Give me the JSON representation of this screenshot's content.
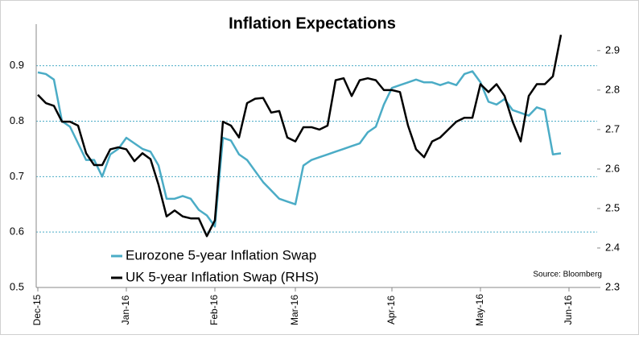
{
  "chart_data": {
    "type": "line",
    "title": "Inflation Expectations",
    "source": "Source: Bloomberg",
    "categories": [
      "Dec-15",
      null,
      null,
      null,
      null,
      null,
      null,
      null,
      null,
      null,
      null,
      "Jan-16",
      null,
      null,
      null,
      null,
      null,
      null,
      null,
      null,
      null,
      null,
      "Feb-16",
      null,
      null,
      null,
      null,
      null,
      null,
      null,
      null,
      null,
      "Mar-16",
      null,
      null,
      null,
      null,
      null,
      null,
      null,
      null,
      null,
      null,
      null,
      "Apr-16",
      null,
      null,
      null,
      null,
      null,
      null,
      null,
      null,
      null,
      null,
      "May-16",
      null,
      null,
      null,
      null,
      null,
      null,
      null,
      null,
      null,
      null,
      "Jun-16"
    ],
    "series": [
      {
        "name": "Eurozone 5-year Inflation Swap",
        "color": "#4bacc6",
        "axis": "y",
        "values": [
          0.888,
          0.885,
          0.875,
          0.8,
          0.79,
          0.76,
          0.73,
          0.73,
          0.7,
          0.74,
          0.75,
          0.77,
          0.76,
          0.75,
          0.745,
          0.72,
          0.66,
          0.66,
          0.665,
          0.66,
          0.64,
          0.63,
          0.61,
          0.77,
          0.765,
          0.74,
          0.73,
          0.71,
          0.69,
          0.675,
          0.66,
          0.655,
          0.65,
          0.72,
          0.73,
          0.735,
          0.74,
          0.745,
          0.75,
          0.755,
          0.76,
          0.78,
          0.79,
          0.83,
          0.86,
          0.865,
          0.87,
          0.875,
          0.87,
          0.87,
          0.865,
          0.87,
          0.865,
          0.885,
          0.89,
          0.87,
          0.835,
          0.83,
          0.84,
          0.82,
          0.815,
          0.81,
          0.825,
          0.82,
          0.74,
          0.742,
          null
        ]
      },
      {
        "name": "UK 5-year Inflation Swap (RHS)",
        "color": "#000000",
        "axis": "y2",
        "values": [
          2.788,
          2.767,
          2.76,
          2.72,
          2.72,
          2.71,
          2.64,
          2.61,
          2.61,
          2.65,
          2.655,
          2.65,
          2.62,
          2.64,
          2.625,
          2.56,
          2.48,
          2.495,
          2.48,
          2.475,
          2.475,
          2.43,
          2.47,
          2.72,
          2.71,
          2.68,
          2.767,
          2.778,
          2.78,
          2.743,
          2.747,
          2.68,
          2.67,
          2.706,
          2.706,
          2.7,
          2.71,
          2.825,
          2.83,
          2.785,
          2.825,
          2.83,
          2.825,
          2.8,
          2.8,
          2.795,
          2.71,
          2.65,
          2.63,
          2.67,
          2.68,
          2.7,
          2.72,
          2.73,
          2.73,
          2.815,
          2.795,
          2.815,
          2.785,
          2.72,
          2.67,
          2.785,
          2.815,
          2.815,
          2.835,
          2.94,
          null
        ]
      }
    ],
    "ylim": [
      0.5,
      0.975
    ],
    "yticks": [
      0.5,
      0.6,
      0.7,
      0.8,
      0.9
    ],
    "y2lim": [
      2.3,
      2.967
    ],
    "y2ticks": [
      2.3,
      2.4,
      2.5,
      2.6,
      2.7,
      2.8,
      2.9
    ],
    "grid": true
  }
}
